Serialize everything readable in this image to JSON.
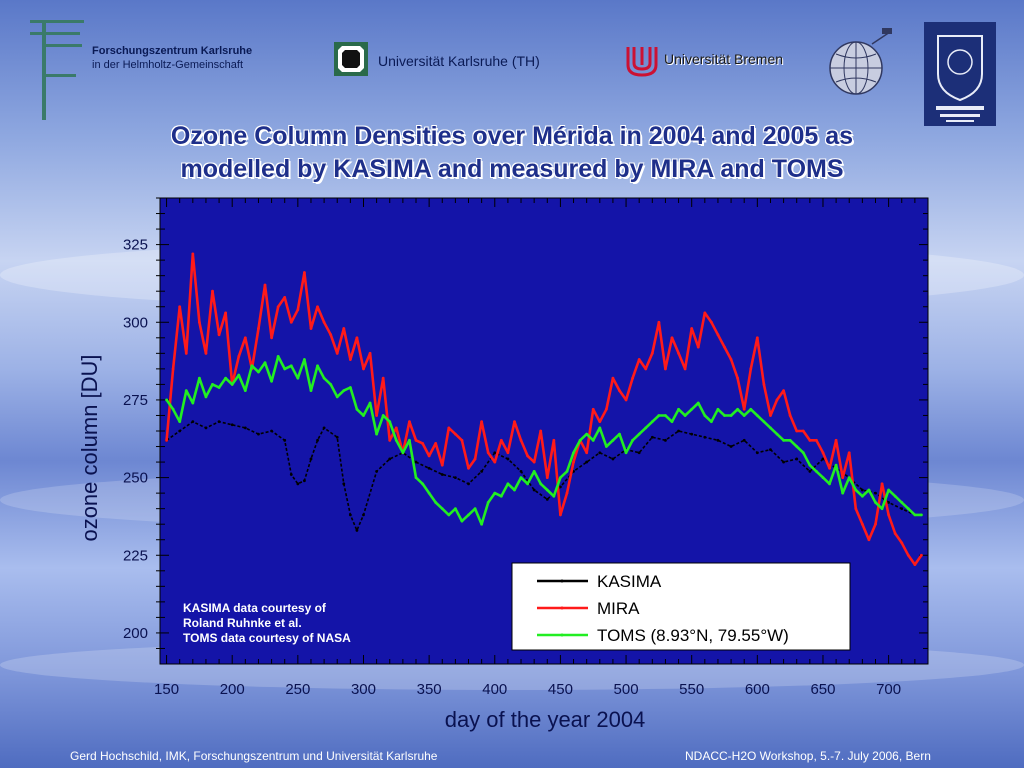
{
  "header": {
    "fzk_line1": "Forschungszentrum Karlsruhe",
    "fzk_line2": "in der Helmholtz-Gemeinschaft",
    "uka_label": "Universität Karlsruhe (TH)",
    "ub_label": "Universität Bremen"
  },
  "title_line1": "Ozone Column Densities over Mérida in 2004 and 2005 as",
  "title_line2": "modelled by KASIMA and measured by MIRA and TOMS",
  "colors": {
    "plot_bg": "#1414a8",
    "kasima": "#000000",
    "mira": "#ff1a1a",
    "toms": "#22ee22",
    "title": "#1e2f8a"
  },
  "chart_data": {
    "type": "line",
    "xlabel": "day of the year 2004",
    "ylabel": "ozone column [DU]",
    "xlim": [
      145,
      730
    ],
    "ylim": [
      190,
      340
    ],
    "xticks": [
      150,
      200,
      250,
      300,
      350,
      400,
      450,
      500,
      550,
      600,
      650,
      700
    ],
    "yticks": [
      200,
      225,
      250,
      275,
      300,
      325
    ],
    "legend_position": "bottom-right",
    "annotation": [
      "KASIMA data courtesy of",
      "Roland Ruhnke et al.",
      "TOMS data courtesy of NASA"
    ],
    "series": [
      {
        "name": "KASIMA",
        "color": "#000000",
        "x": [
          150,
          160,
          170,
          180,
          190,
          200,
          210,
          220,
          230,
          240,
          245,
          250,
          255,
          260,
          265,
          270,
          280,
          285,
          290,
          295,
          300,
          310,
          320,
          330,
          340,
          350,
          360,
          370,
          380,
          390,
          400,
          410,
          420,
          430,
          440,
          450,
          460,
          470,
          480,
          490,
          500,
          510,
          520,
          530,
          540,
          550,
          560,
          570,
          580,
          590,
          600,
          610,
          620,
          630,
          640,
          650,
          660,
          670,
          680,
          690,
          700,
          710,
          720
        ],
        "values": [
          262,
          265,
          268,
          266,
          268,
          267,
          266,
          264,
          265,
          262,
          251,
          248,
          249,
          256,
          262,
          266,
          263,
          248,
          238,
          233,
          238,
          252,
          256,
          258,
          255,
          253,
          251,
          250,
          248,
          252,
          258,
          256,
          252,
          246,
          243,
          247,
          252,
          255,
          258,
          256,
          259,
          258,
          263,
          262,
          265,
          264,
          263,
          262,
          260,
          262,
          258,
          259,
          255,
          256,
          252,
          256,
          253,
          250,
          246,
          245,
          242,
          240,
          238
        ]
      },
      {
        "name": "MIRA",
        "color": "#ff1a1a",
        "x": [
          150,
          155,
          160,
          165,
          170,
          175,
          180,
          185,
          190,
          195,
          200,
          205,
          210,
          215,
          220,
          225,
          230,
          235,
          240,
          245,
          250,
          255,
          260,
          265,
          270,
          275,
          280,
          285,
          290,
          295,
          300,
          305,
          310,
          315,
          320,
          325,
          330,
          335,
          340,
          345,
          350,
          355,
          360,
          365,
          370,
          375,
          380,
          385,
          390,
          395,
          400,
          405,
          410,
          415,
          420,
          425,
          430,
          435,
          440,
          445,
          450,
          455,
          460,
          465,
          470,
          475,
          480,
          485,
          490,
          495,
          500,
          505,
          510,
          515,
          520,
          525,
          530,
          535,
          540,
          545,
          550,
          555,
          560,
          565,
          570,
          575,
          580,
          585,
          590,
          595,
          600,
          605,
          610,
          615,
          620,
          625,
          630,
          635,
          640,
          645,
          650,
          655,
          660,
          665,
          670,
          675,
          680,
          685,
          690,
          695,
          700,
          705,
          710,
          715,
          720,
          725
        ],
        "values": [
          262,
          285,
          305,
          290,
          322,
          300,
          290,
          310,
          296,
          303,
          280,
          289,
          295,
          285,
          298,
          312,
          295,
          305,
          308,
          300,
          304,
          316,
          298,
          305,
          300,
          296,
          290,
          298,
          288,
          295,
          285,
          290,
          270,
          282,
          262,
          266,
          258,
          268,
          262,
          261,
          257,
          261,
          254,
          266,
          264,
          262,
          253,
          256,
          268,
          258,
          255,
          262,
          258,
          268,
          262,
          257,
          255,
          265,
          250,
          262,
          238,
          245,
          255,
          262,
          258,
          272,
          268,
          272,
          282,
          278,
          275,
          282,
          288,
          285,
          290,
          300,
          285,
          295,
          290,
          285,
          298,
          292,
          303,
          300,
          296,
          292,
          288,
          282,
          272,
          285,
          295,
          280,
          270,
          275,
          278,
          270,
          265,
          265,
          262,
          262,
          258,
          253,
          262,
          250,
          258,
          240,
          235,
          230,
          235,
          248,
          238,
          232,
          229,
          225,
          222,
          225
        ]
      },
      {
        "name": "TOMS (8.93°N, 79.55°W)",
        "color": "#22ee22",
        "x": [
          150,
          155,
          160,
          165,
          170,
          175,
          180,
          185,
          190,
          195,
          200,
          205,
          210,
          215,
          220,
          225,
          230,
          235,
          240,
          245,
          250,
          255,
          260,
          265,
          270,
          275,
          280,
          285,
          290,
          295,
          300,
          305,
          310,
          315,
          320,
          325,
          330,
          335,
          340,
          345,
          350,
          355,
          360,
          365,
          370,
          375,
          380,
          385,
          390,
          395,
          400,
          405,
          410,
          415,
          420,
          425,
          430,
          435,
          440,
          445,
          450,
          455,
          460,
          465,
          470,
          475,
          480,
          485,
          490,
          495,
          500,
          505,
          510,
          515,
          520,
          525,
          530,
          535,
          540,
          545,
          550,
          555,
          560,
          565,
          570,
          575,
          580,
          585,
          590,
          595,
          600,
          605,
          610,
          615,
          620,
          625,
          630,
          635,
          640,
          645,
          650,
          655,
          660,
          665,
          670,
          675,
          680,
          685,
          690,
          695,
          700,
          705,
          710,
          715,
          720,
          725
        ],
        "values": [
          275,
          272,
          268,
          278,
          274,
          282,
          276,
          280,
          279,
          282,
          280,
          283,
          278,
          286,
          284,
          287,
          281,
          289,
          285,
          286,
          282,
          288,
          278,
          286,
          282,
          280,
          276,
          278,
          279,
          272,
          270,
          274,
          264,
          270,
          268,
          262,
          258,
          262,
          250,
          248,
          245,
          242,
          240,
          238,
          240,
          236,
          238,
          240,
          235,
          242,
          245,
          244,
          248,
          246,
          250,
          248,
          252,
          248,
          246,
          244,
          250,
          252,
          258,
          262,
          264,
          262,
          266,
          260,
          262,
          264,
          258,
          262,
          264,
          266,
          268,
          270,
          270,
          268,
          272,
          270,
          272,
          274,
          270,
          268,
          272,
          270,
          270,
          272,
          270,
          272,
          270,
          268,
          266,
          264,
          262,
          262,
          260,
          258,
          254,
          252,
          250,
          248,
          254,
          245,
          250,
          246,
          244,
          246,
          242,
          240,
          246,
          244,
          242,
          240,
          238,
          238
        ]
      }
    ]
  },
  "footer_left": "Gerd Hochschild, IMK, Forschungszentrum und Universität Karlsruhe",
  "footer_right": "NDACC-H2O Workshop, 5.-7. July 2006, Bern"
}
